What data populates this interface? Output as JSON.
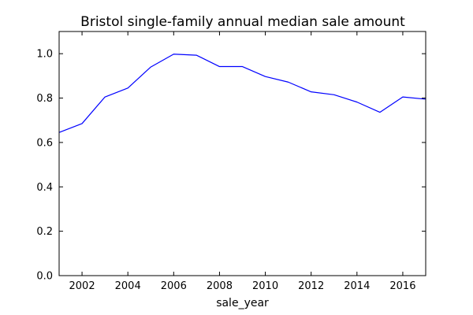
{
  "chart_data": {
    "type": "line",
    "title": "Bristol single-family annual median sale amount",
    "xlabel": "sale_year",
    "ylabel": "",
    "xlim": [
      2001,
      2017
    ],
    "ylim": [
      0.0,
      1.1
    ],
    "xticks": [
      2002,
      2004,
      2006,
      2008,
      2010,
      2012,
      2014,
      2016
    ],
    "xtick_labels": [
      "2002",
      "2004",
      "2006",
      "2008",
      "2010",
      "2012",
      "2014",
      "2016"
    ],
    "yticks": [
      0.0,
      0.2,
      0.4,
      0.6,
      0.8,
      1.0
    ],
    "ytick_labels": [
      "0.0",
      "0.2",
      "0.4",
      "0.6",
      "0.8",
      "1.0"
    ],
    "grid": false,
    "legend": false,
    "series": [
      {
        "color": "#0000ff",
        "x": [
          2001,
          2002,
          2003,
          2004,
          2005,
          2006,
          2007,
          2008,
          2009,
          2010,
          2011,
          2012,
          2013,
          2014,
          2015,
          2016,
          2017
        ],
        "y": [
          0.645,
          0.685,
          0.805,
          0.845,
          0.94,
          0.998,
          0.993,
          0.942,
          0.942,
          0.897,
          0.872,
          0.828,
          0.815,
          0.782,
          0.736,
          0.805,
          0.795
        ]
      }
    ]
  }
}
